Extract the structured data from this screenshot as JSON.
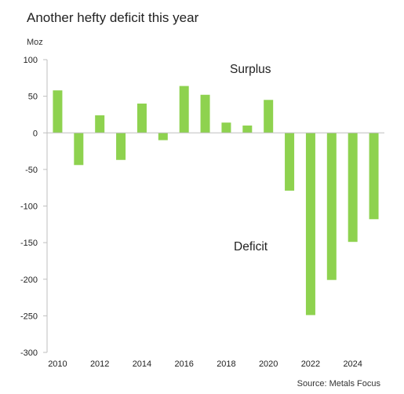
{
  "chart_data": {
    "type": "bar",
    "title": "Another hefty deficit this year",
    "unit_label": "Moz",
    "source": "Source: Metals Focus",
    "annotations": [
      "Surplus",
      "Deficit"
    ],
    "categories": [
      "2010",
      "2011",
      "2012",
      "2013",
      "2014",
      "2015",
      "2016",
      "2017",
      "2018",
      "2019",
      "2020",
      "2021",
      "2022",
      "2023",
      "2024",
      "2025"
    ],
    "values": [
      58,
      -44,
      24,
      -37,
      40,
      -10,
      64,
      52,
      14,
      10,
      45,
      -79,
      -249,
      -201,
      -149,
      -118
    ],
    "x_tick_labels": [
      "2010",
      "2012",
      "2014",
      "2016",
      "2018",
      "2020",
      "2022",
      "2024"
    ],
    "y_ticks": [
      100,
      50,
      0,
      -50,
      -100,
      -150,
      -200,
      -250,
      -300
    ],
    "ylim": [
      -300,
      100
    ],
    "bar_color": "#8ed24f",
    "grid": false,
    "legend": "none"
  }
}
